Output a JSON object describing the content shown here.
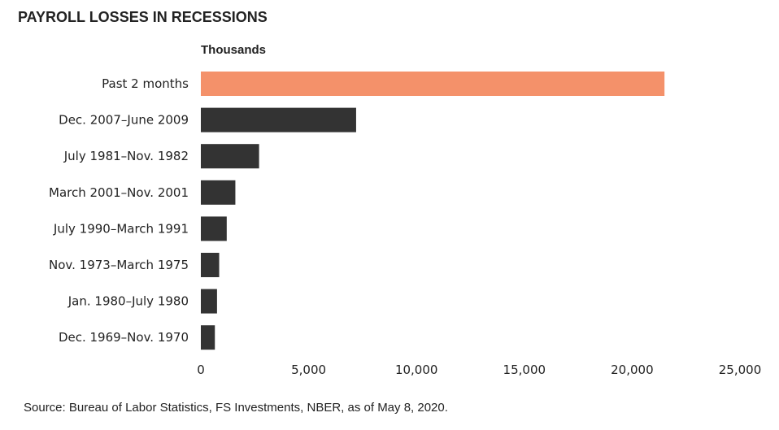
{
  "chart_data": {
    "type": "bar",
    "orientation": "horizontal",
    "title": "PAYROLL LOSSES IN RECESSIONS",
    "unit_label": "Thousands",
    "categories": [
      "Past 2 months",
      "Dec. 2007–June 2009",
      "July 1981–Nov. 1982",
      "March 2001–Nov. 2001",
      "July 1990–March 1991",
      "Nov. 1973–March 1975",
      "Jan. 1980–July 1980",
      "Dec. 1969–Nov. 1970"
    ],
    "values": [
      21500,
      7200,
      2700,
      1600,
      1200,
      850,
      750,
      650
    ],
    "bar_colors": [
      "#F4916A",
      "#333333",
      "#333333",
      "#333333",
      "#333333",
      "#333333",
      "#333333",
      "#333333"
    ],
    "xlim": [
      0,
      25000
    ],
    "x_ticks": [
      0,
      5000,
      10000,
      15000,
      20000,
      25000
    ],
    "x_tick_labels": [
      "0",
      "5,000",
      "10,000",
      "15,000",
      "20,000",
      "25,000"
    ],
    "grid": false,
    "legend": "none",
    "source": "Source: Bureau of Labor Statistics, FS Investments, NBER, as of May 8, 2020."
  }
}
